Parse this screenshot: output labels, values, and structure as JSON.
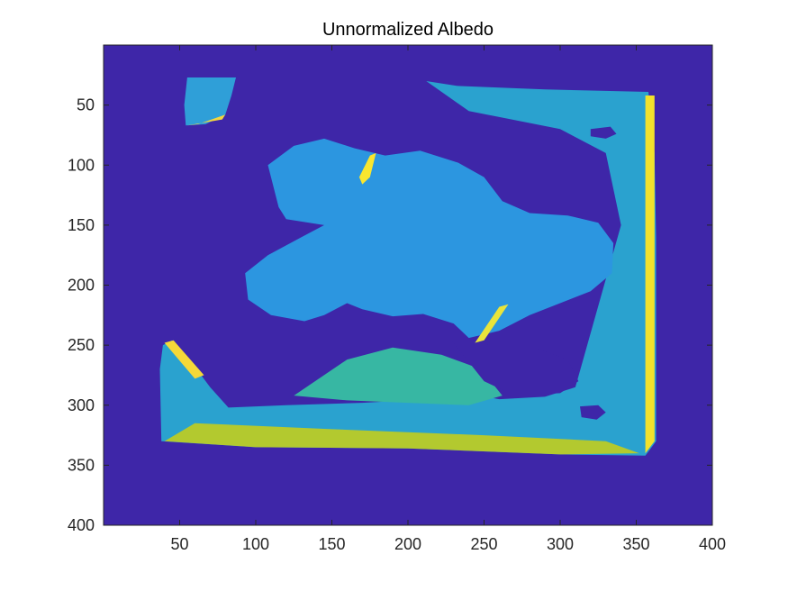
{
  "chart_data": {
    "type": "heatmap",
    "title": "Unnormalized Albedo",
    "xlabel": "",
    "ylabel": "",
    "xlim": [
      0,
      400
    ],
    "ylim": [
      400,
      0
    ],
    "x_ticks": [
      50,
      100,
      150,
      200,
      250,
      300,
      350,
      400
    ],
    "y_ticks": [
      50,
      100,
      150,
      200,
      250,
      300,
      350,
      400
    ],
    "x_tick_labels": [
      "50",
      "100",
      "150",
      "200",
      "250",
      "300",
      "350",
      "400"
    ],
    "y_tick_labels": [
      "50",
      "100",
      "150",
      "200",
      "250",
      "300",
      "350",
      "400"
    ],
    "colormap": "parula",
    "background_color": "#3e26a8",
    "grid": false,
    "regions": [
      {
        "color": "#2f9fd8",
        "points": [
          [
            55,
            27
          ],
          [
            87,
            27
          ],
          [
            84,
            42
          ],
          [
            80,
            58
          ],
          [
            67,
            66
          ],
          [
            54,
            67
          ],
          [
            53,
            50
          ]
        ]
      },
      {
        "color": "#2aa2cf",
        "points": [
          [
            212,
            30
          ],
          [
            232,
            34
          ],
          [
            290,
            37
          ],
          [
            358,
            39
          ],
          [
            362,
            90
          ],
          [
            363,
            160
          ],
          [
            363,
            330
          ],
          [
            356,
            342
          ],
          [
            300,
            341
          ],
          [
            200,
            336
          ],
          [
            100,
            335
          ],
          [
            38,
            330
          ],
          [
            37,
            270
          ],
          [
            39,
            250
          ],
          [
            45,
            246
          ],
          [
            60,
            268
          ],
          [
            70,
            285
          ],
          [
            82,
            302
          ],
          [
            120,
            300
          ],
          [
            170,
            298
          ],
          [
            200,
            296
          ],
          [
            230,
            288
          ],
          [
            260,
            295
          ],
          [
            290,
            293
          ],
          [
            310,
            285
          ],
          [
            340,
            150
          ],
          [
            330,
            90
          ],
          [
            300,
            70
          ],
          [
            260,
            60
          ],
          [
            240,
            55
          ]
        ]
      },
      {
        "color": "#2c96e0",
        "points": [
          [
            108,
            100
          ],
          [
            125,
            84
          ],
          [
            145,
            78
          ],
          [
            165,
            86
          ],
          [
            185,
            92
          ],
          [
            208,
            88
          ],
          [
            233,
            98
          ],
          [
            250,
            110
          ],
          [
            262,
            130
          ],
          [
            280,
            140
          ],
          [
            305,
            142
          ],
          [
            325,
            148
          ],
          [
            335,
            165
          ],
          [
            334,
            190
          ],
          [
            320,
            205
          ],
          [
            300,
            215
          ],
          [
            280,
            225
          ],
          [
            260,
            238
          ],
          [
            240,
            244
          ],
          [
            230,
            232
          ],
          [
            210,
            224
          ],
          [
            190,
            226
          ],
          [
            170,
            220
          ],
          [
            160,
            215
          ],
          [
            145,
            225
          ],
          [
            132,
            230
          ],
          [
            110,
            225
          ],
          [
            95,
            212
          ],
          [
            93,
            190
          ],
          [
            108,
            175
          ],
          [
            130,
            160
          ],
          [
            145,
            150
          ],
          [
            120,
            145
          ],
          [
            115,
            135
          ]
        ]
      },
      {
        "color": "#37b7a3",
        "points": [
          [
            125,
            292
          ],
          [
            160,
            262
          ],
          [
            190,
            252
          ],
          [
            222,
            258
          ],
          [
            248,
            270
          ],
          [
            262,
            292
          ],
          [
            240,
            300
          ],
          [
            200,
            298
          ],
          [
            160,
            296
          ]
        ]
      },
      {
        "color": "#b3c92f",
        "points": [
          [
            60,
            315
          ],
          [
            150,
            320
          ],
          [
            250,
            325
          ],
          [
            330,
            330
          ],
          [
            352,
            340
          ],
          [
            300,
            341
          ],
          [
            200,
            336
          ],
          [
            100,
            335
          ],
          [
            40,
            330
          ]
        ]
      },
      {
        "color": "#3e26a8",
        "points": [
          [
            228,
            245
          ],
          [
            255,
            250
          ],
          [
            285,
            253
          ],
          [
            305,
            262
          ],
          [
            312,
            280
          ],
          [
            300,
            290
          ],
          [
            270,
            292
          ],
          [
            250,
            280
          ]
        ]
      },
      {
        "color": "#3e26a8",
        "points": [
          [
            320,
            70
          ],
          [
            333,
            68
          ],
          [
            337,
            74
          ],
          [
            330,
            78
          ],
          [
            320,
            76
          ]
        ]
      },
      {
        "color": "#3e26a8",
        "points": [
          [
            313,
            301
          ],
          [
            325,
            300
          ],
          [
            330,
            306
          ],
          [
            324,
            312
          ],
          [
            314,
            310
          ]
        ]
      }
    ],
    "highlights": [
      {
        "color": "#f9e62f",
        "points": [
          [
            175,
            92
          ],
          [
            179,
            90
          ],
          [
            175,
            110
          ],
          [
            170,
            116
          ],
          [
            168,
            110
          ]
        ]
      },
      {
        "color": "#f2e12c",
        "points": [
          [
            356,
            42
          ],
          [
            362,
            42
          ],
          [
            362,
            330
          ],
          [
            356,
            340
          ]
        ]
      },
      {
        "color": "#f5d838",
        "points": [
          [
            40,
            248
          ],
          [
            46,
            246
          ],
          [
            66,
            275
          ],
          [
            60,
            278
          ]
        ]
      },
      {
        "color": "#e9e43b",
        "points": [
          [
            260,
            218
          ],
          [
            266,
            216
          ],
          [
            250,
            246
          ],
          [
            244,
            248
          ]
        ]
      },
      {
        "color": "#f4d63f",
        "points": [
          [
            55,
            67
          ],
          [
            78,
            62
          ],
          [
            80,
            58
          ],
          [
            62,
            66
          ]
        ]
      }
    ]
  }
}
